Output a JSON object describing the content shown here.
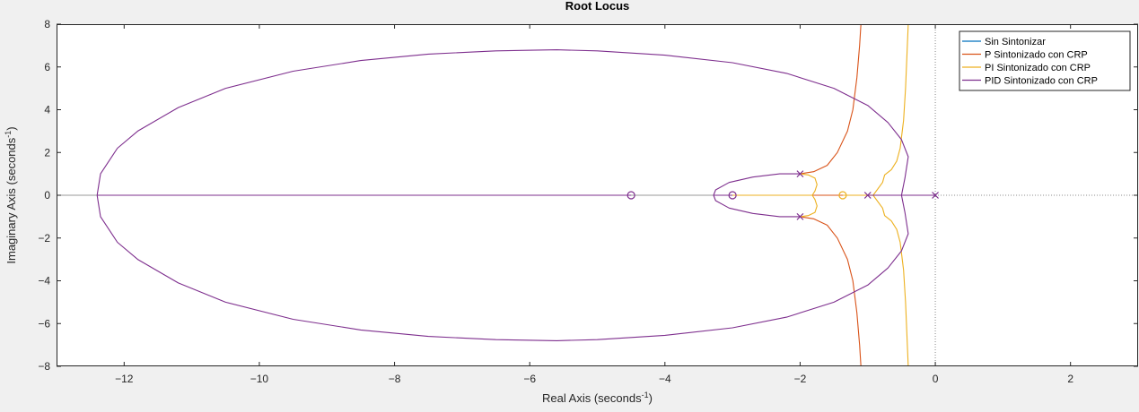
{
  "chart_data": {
    "type": "line",
    "title": "Root Locus",
    "xlabel": "Real Axis (seconds",
    "xlabel_sup": "-1",
    "xlabel_end": ")",
    "ylabel": "Imaginary Axis (seconds",
    "ylabel_sup": "-1",
    "ylabel_end": ")",
    "xlim": [
      -13,
      3
    ],
    "ylim": [
      -8,
      8
    ],
    "xticks": [
      -12,
      -10,
      -8,
      -6,
      -4,
      -2,
      0,
      2
    ],
    "yticks": [
      -8,
      -6,
      -4,
      -2,
      0,
      2,
      4,
      6,
      8
    ],
    "grid": false,
    "legend_position": "top-right",
    "series": [
      {
        "name": "Sin Sintonizar",
        "color": "#0072BD",
        "branches": []
      },
      {
        "name": "P Sintonizado con CRP",
        "color": "#D95319",
        "branches": [
          [
            [
              -2,
              1
            ],
            [
              -1.8,
              1.1
            ],
            [
              -1.6,
              1.4
            ],
            [
              -1.45,
              2.0
            ],
            [
              -1.3,
              3.0
            ],
            [
              -1.22,
              4.0
            ],
            [
              -1.16,
              5.5
            ],
            [
              -1.12,
              7.0
            ],
            [
              -1.1,
              8.0
            ]
          ],
          [
            [
              -2,
              -1
            ],
            [
              -1.8,
              -1.1
            ],
            [
              -1.6,
              -1.4
            ],
            [
              -1.45,
              -2.0
            ],
            [
              -1.3,
              -3.0
            ],
            [
              -1.22,
              -4.0
            ],
            [
              -1.16,
              -5.5
            ],
            [
              -1.12,
              -7.0
            ],
            [
              -1.1,
              -8.0
            ]
          ],
          [
            [
              -1,
              0
            ],
            [
              -3,
              0
            ]
          ]
        ]
      },
      {
        "name": "PI Sintonizado con CRP",
        "color": "#EDB120",
        "branches": [
          [
            [
              -2,
              1
            ],
            [
              -1.88,
              0.95
            ],
            [
              -1.78,
              0.8
            ],
            [
              -1.75,
              0.5
            ],
            [
              -1.78,
              0.2
            ],
            [
              -1.82,
              0
            ]
          ],
          [
            [
              -2,
              -1
            ],
            [
              -1.88,
              -0.95
            ],
            [
              -1.78,
              -0.8
            ],
            [
              -1.75,
              -0.5
            ],
            [
              -1.78,
              -0.2
            ],
            [
              -1.82,
              0
            ]
          ],
          [
            [
              -1.82,
              0
            ],
            [
              -3,
              0
            ]
          ],
          [
            [
              -1,
              0
            ],
            [
              -0.92,
              0
            ]
          ],
          [
            [
              0,
              0
            ],
            [
              -0.62,
              0
            ]
          ],
          [
            [
              -0.92,
              0
            ],
            [
              -0.78,
              0.6
            ],
            [
              -0.75,
              0.95
            ],
            [
              -0.65,
              1.2
            ],
            [
              -0.57,
              1.6
            ],
            [
              -0.52,
              2.2
            ],
            [
              -0.47,
              3.5
            ],
            [
              -0.44,
              5.0
            ],
            [
              -0.42,
              6.5
            ],
            [
              -0.4,
              8.0
            ]
          ],
          [
            [
              -0.92,
              0
            ],
            [
              -0.78,
              -0.6
            ],
            [
              -0.75,
              -0.95
            ],
            [
              -0.65,
              -1.2
            ],
            [
              -0.57,
              -1.6
            ],
            [
              -0.52,
              -2.2
            ],
            [
              -0.47,
              -3.5
            ],
            [
              -0.44,
              -5.0
            ],
            [
              -0.42,
              -6.5
            ],
            [
              -0.4,
              -8.0
            ]
          ],
          [
            [
              -0.62,
              0
            ],
            [
              -1.37,
              0
            ]
          ]
        ]
      },
      {
        "name": "PID Sintonizado con CRP",
        "color": "#7E2F8E",
        "branches": [
          [
            [
              -2,
              1
            ],
            [
              -2.3,
              1.0
            ],
            [
              -2.7,
              0.85
            ],
            [
              -3.05,
              0.6
            ],
            [
              -3.25,
              0.25
            ],
            [
              -3.28,
              0
            ]
          ],
          [
            [
              -2,
              -1
            ],
            [
              -2.3,
              -1.0
            ],
            [
              -2.7,
              -0.85
            ],
            [
              -3.05,
              -0.6
            ],
            [
              -3.25,
              -0.25
            ],
            [
              -3.28,
              0
            ]
          ],
          [
            [
              -1,
              0
            ],
            [
              -0.5,
              0
            ]
          ],
          [
            [
              0,
              0
            ],
            [
              -0.5,
              0
            ]
          ],
          [
            [
              -0.5,
              0
            ],
            [
              -0.45,
              0.8
            ],
            [
              -0.4,
              1.8
            ],
            [
              -0.5,
              2.6
            ],
            [
              -0.7,
              3.4
            ],
            [
              -1.0,
              4.2
            ],
            [
              -1.5,
              5.0
            ],
            [
              -2.2,
              5.7
            ],
            [
              -3.0,
              6.2
            ],
            [
              -4.0,
              6.55
            ],
            [
              -5.0,
              6.75
            ],
            [
              -5.6,
              6.8
            ],
            [
              -6.5,
              6.75
            ],
            [
              -7.5,
              6.6
            ],
            [
              -8.5,
              6.3
            ],
            [
              -9.5,
              5.8
            ],
            [
              -10.5,
              5.0
            ],
            [
              -11.2,
              4.1
            ],
            [
              -11.8,
              3.0
            ],
            [
              -12.1,
              2.2
            ],
            [
              -12.35,
              1.0
            ],
            [
              -12.4,
              0
            ]
          ],
          [
            [
              -0.5,
              0
            ],
            [
              -0.45,
              -0.8
            ],
            [
              -0.4,
              -1.8
            ],
            [
              -0.5,
              -2.6
            ],
            [
              -0.7,
              -3.4
            ],
            [
              -1.0,
              -4.2
            ],
            [
              -1.5,
              -5.0
            ],
            [
              -2.2,
              -5.7
            ],
            [
              -3.0,
              -6.2
            ],
            [
              -4.0,
              -6.55
            ],
            [
              -5.0,
              -6.75
            ],
            [
              -5.6,
              -6.8
            ],
            [
              -6.5,
              -6.75
            ],
            [
              -7.5,
              -6.6
            ],
            [
              -8.5,
              -6.3
            ],
            [
              -9.5,
              -5.8
            ],
            [
              -10.5,
              -5.0
            ],
            [
              -11.2,
              -4.1
            ],
            [
              -11.8,
              -3.0
            ],
            [
              -12.1,
              -2.2
            ],
            [
              -12.35,
              -1.0
            ],
            [
              -12.4,
              0
            ]
          ],
          [
            [
              -3.28,
              0
            ],
            [
              -3.0,
              0
            ]
          ],
          [
            [
              -12.4,
              0
            ],
            [
              -4.5,
              0
            ]
          ],
          [
            [
              -12.4,
              0
            ],
            [
              -11.9,
              0
            ]
          ]
        ]
      }
    ],
    "poles": [
      {
        "x": -2,
        "y": 1,
        "color": "#7E2F8E"
      },
      {
        "x": -2,
        "y": -1,
        "color": "#7E2F8E"
      },
      {
        "x": -1,
        "y": 0,
        "color": "#7E2F8E"
      },
      {
        "x": 0,
        "y": 0,
        "color": "#7E2F8E"
      }
    ],
    "zeros": [
      {
        "x": -4.5,
        "y": 0,
        "color": "#7E2F8E"
      },
      {
        "x": -3,
        "y": 0,
        "color": "#7E2F8E"
      },
      {
        "x": -1.37,
        "y": 0,
        "color": "#EDB120"
      }
    ]
  }
}
